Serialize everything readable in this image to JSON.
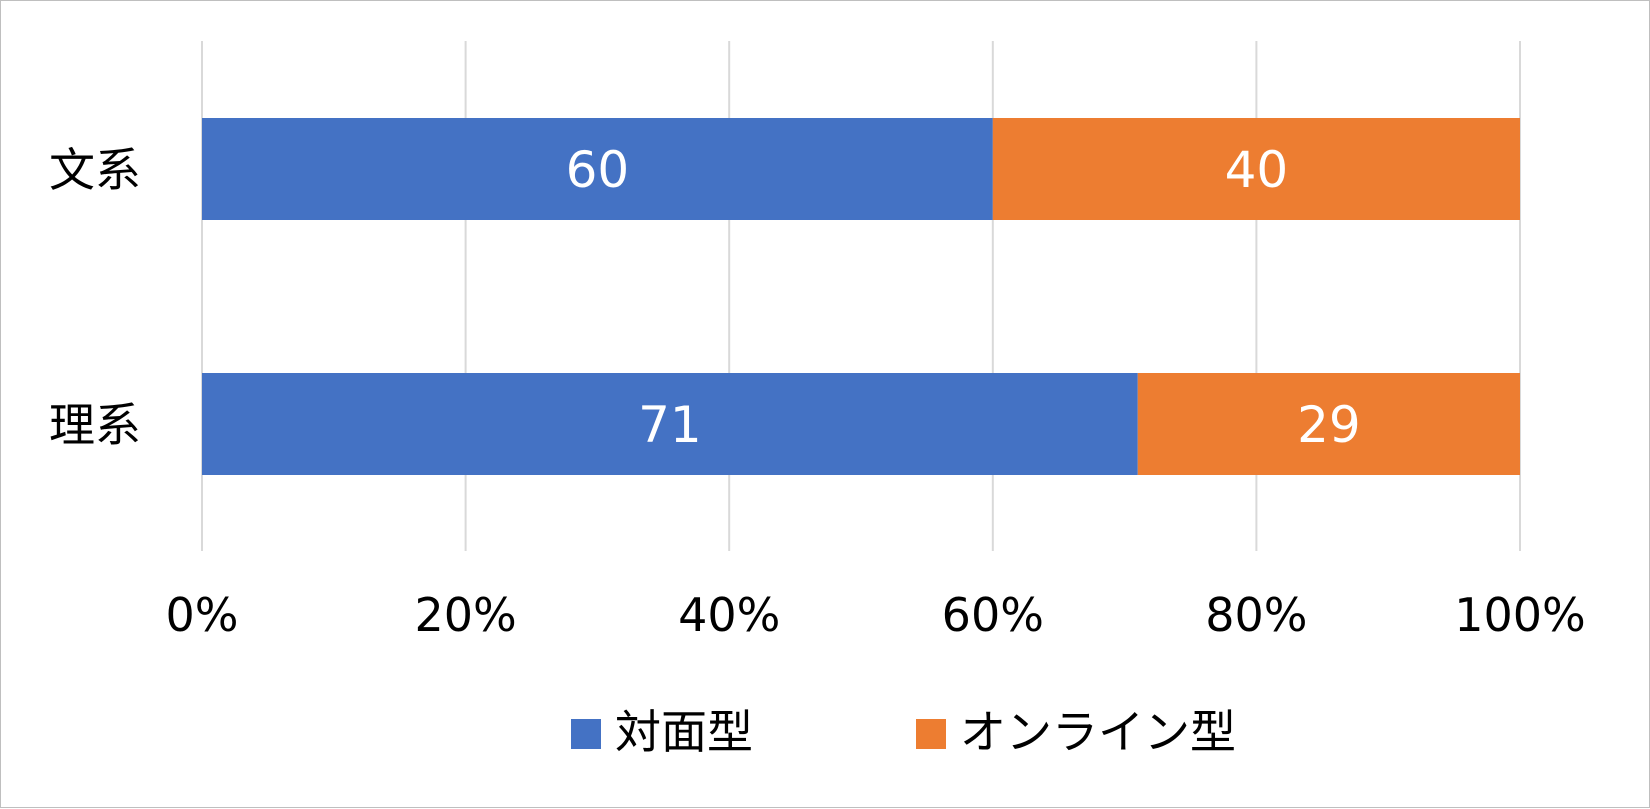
{
  "chart_data": {
    "type": "bar",
    "orientation": "horizontal",
    "stacking": "percent",
    "categories": [
      "文系",
      "理系"
    ],
    "series": [
      {
        "name": "対面型",
        "values": [
          60,
          71
        ],
        "color": "#4472C4"
      },
      {
        "name": "オンライン型",
        "values": [
          40,
          29
        ],
        "color": "#ED7D31"
      }
    ],
    "xlim": [
      0,
      100
    ],
    "x_ticks": [
      0,
      20,
      40,
      60,
      80,
      100
    ],
    "x_tick_labels": [
      "0%",
      "20%",
      "40%",
      "60%",
      "80%",
      "100%"
    ],
    "grid": true,
    "legend_position": "bottom",
    "title": "",
    "xlabel": "",
    "ylabel": ""
  }
}
